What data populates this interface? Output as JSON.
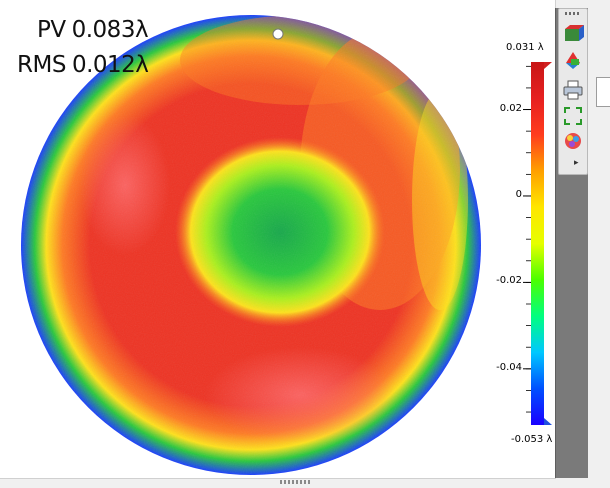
{
  "stats": {
    "pv_label": "PV",
    "pv_value": "0.083λ",
    "rms_label": "RMS",
    "rms_value": "0.012λ"
  },
  "colorbar": {
    "max_label": "0.031 λ",
    "min_label": "-0.053 λ",
    "ticks": [
      {
        "value": 0.02,
        "label": "0.02"
      },
      {
        "value": 0,
        "label": "0"
      },
      {
        "value": -0.02,
        "label": "-0.02"
      },
      {
        "value": -0.04,
        "label": "-0.04"
      }
    ],
    "range": [
      -0.053,
      0.031
    ],
    "colors": [
      "#1a00ff",
      "#0050ff",
      "#00c8ff",
      "#00ff7f",
      "#4cff00",
      "#e6ff00",
      "#ffe600",
      "#ffa000",
      "#ff3c1e",
      "#e62020",
      "#c81616"
    ]
  },
  "map_colors": {
    "red": "#ee3222",
    "orange": "#ff7a22",
    "yellow": "#ffe21a",
    "lime": "#aaf01c",
    "green": "#28c83c",
    "dark_green": "#16a84a",
    "blue": "#1a3cff",
    "pink": "#ff6a6a"
  },
  "toolbar": {
    "buttons": [
      {
        "name": "3d-view-icon",
        "label": "3D view"
      },
      {
        "name": "color-map-icon",
        "label": "Color map"
      },
      {
        "name": "print-icon",
        "label": "Print"
      },
      {
        "name": "fit-to-window-icon",
        "label": "Fit"
      },
      {
        "name": "palette-icon",
        "label": "Palette"
      }
    ],
    "more_glyph": "▸"
  }
}
